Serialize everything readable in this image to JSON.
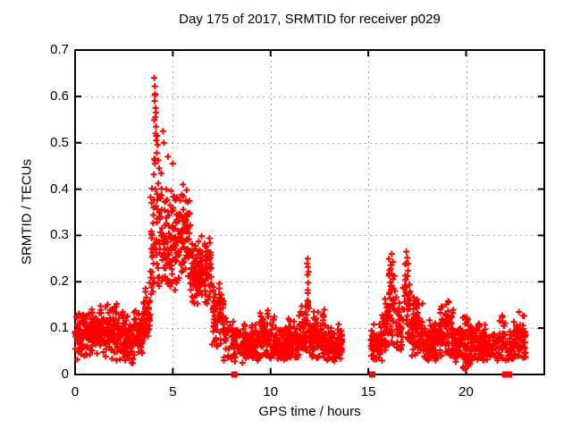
{
  "window": {
    "background": "#ffffff",
    "text_color": "#000000"
  },
  "chart_data": {
    "type": "scatter",
    "title": "Day 175 of 2017, SRMTID for receiver p029",
    "xlabel": "GPS time / hours",
    "ylabel": "SRMTID / TECUs",
    "xlim": [
      0,
      24
    ],
    "ylim": [
      0,
      0.7
    ],
    "xticks": {
      "values": [
        0,
        5,
        10,
        15,
        20
      ],
      "labels": [
        "0",
        "5",
        "10",
        "15",
        "20"
      ]
    },
    "yticks": {
      "values": [
        0,
        0.1,
        0.2,
        0.3,
        0.4,
        0.5,
        0.6,
        0.7
      ],
      "labels": [
        "0",
        "0.1",
        "0.2",
        "0.3",
        "0.4",
        "0.5",
        "0.6",
        "0.7"
      ]
    },
    "grid": {
      "show": true,
      "style": "dotted",
      "color": "#a8a8a8"
    },
    "legend": null,
    "axis_color": "#000000",
    "marker": {
      "shape": "plus",
      "size": 7,
      "stroke_width": 2,
      "color": "#ff0000"
    },
    "seed": 20170175,
    "series": [
      {
        "name": "SRMTID",
        "color": "#ff0000",
        "marker": "plus",
        "cluster_segments": [
          [
            0.0,
            0.5,
            58,
            0.085,
            0.025,
            0.03,
            0.14
          ],
          [
            0.5,
            1.0,
            58,
            0.09,
            0.026,
            0.04,
            0.15
          ],
          [
            1.0,
            1.5,
            58,
            0.095,
            0.028,
            0.04,
            0.175
          ],
          [
            1.5,
            2.0,
            58,
            0.09,
            0.03,
            0.025,
            0.17
          ],
          [
            2.0,
            2.5,
            58,
            0.095,
            0.03,
            0.03,
            0.175
          ],
          [
            2.5,
            3.0,
            58,
            0.07,
            0.026,
            0.02,
            0.13
          ],
          [
            3.0,
            3.5,
            58,
            0.09,
            0.025,
            0.04,
            0.15
          ],
          [
            3.5,
            3.85,
            40,
            0.13,
            0.032,
            0.07,
            0.21
          ],
          [
            3.85,
            4.0,
            20,
            0.27,
            0.09,
            0.15,
            0.5
          ],
          [
            4.0,
            4.18,
            22,
            0.38,
            0.12,
            0.17,
            0.63
          ],
          [
            4.18,
            4.45,
            30,
            0.3,
            0.075,
            0.19,
            0.5
          ],
          [
            4.45,
            4.75,
            36,
            0.28,
            0.06,
            0.18,
            0.5
          ],
          [
            4.75,
            5.3,
            64,
            0.285,
            0.055,
            0.18,
            0.46
          ],
          [
            5.3,
            5.9,
            70,
            0.3,
            0.05,
            0.2,
            0.42
          ],
          [
            5.9,
            6.35,
            54,
            0.21,
            0.04,
            0.12,
            0.3
          ],
          [
            6.35,
            7.0,
            76,
            0.23,
            0.035,
            0.14,
            0.3
          ],
          [
            7.0,
            7.6,
            70,
            0.13,
            0.032,
            0.06,
            0.2
          ],
          [
            7.6,
            8.1,
            38,
            0.08,
            0.025,
            0.03,
            0.13
          ],
          [
            8.1,
            8.65,
            40,
            0.06,
            0.02,
            0.025,
            0.1
          ],
          [
            8.65,
            9.4,
            86,
            0.065,
            0.02,
            0.03,
            0.11
          ],
          [
            9.4,
            10.2,
            92,
            0.08,
            0.025,
            0.035,
            0.14
          ],
          [
            10.2,
            10.85,
            76,
            0.065,
            0.02,
            0.03,
            0.12
          ],
          [
            10.85,
            11.45,
            70,
            0.075,
            0.025,
            0.035,
            0.13
          ],
          [
            11.45,
            11.85,
            46,
            0.09,
            0.028,
            0.05,
            0.155
          ],
          [
            11.85,
            11.98,
            13,
            0.16,
            0.05,
            0.09,
            0.24
          ],
          [
            11.98,
            12.8,
            96,
            0.08,
            0.025,
            0.035,
            0.14
          ],
          [
            12.8,
            13.67,
            98,
            0.06,
            0.02,
            0.025,
            0.11
          ],
          [
            15.13,
            15.7,
            64,
            0.065,
            0.022,
            0.03,
            0.12
          ],
          [
            15.7,
            16.05,
            40,
            0.1,
            0.03,
            0.05,
            0.18
          ],
          [
            16.05,
            16.45,
            46,
            0.14,
            0.05,
            0.06,
            0.25
          ],
          [
            16.45,
            16.78,
            38,
            0.1,
            0.03,
            0.05,
            0.18
          ],
          [
            16.78,
            17.15,
            42,
            0.15,
            0.05,
            0.07,
            0.26
          ],
          [
            17.15,
            17.8,
            76,
            0.1,
            0.032,
            0.04,
            0.2
          ],
          [
            17.8,
            18.6,
            92,
            0.07,
            0.022,
            0.03,
            0.12
          ],
          [
            18.6,
            19.35,
            86,
            0.09,
            0.03,
            0.04,
            0.16
          ],
          [
            19.35,
            19.8,
            52,
            0.06,
            0.02,
            0.025,
            0.1
          ],
          [
            19.8,
            20.25,
            52,
            0.07,
            0.03,
            0.012,
            0.13
          ],
          [
            20.25,
            21.0,
            86,
            0.065,
            0.022,
            0.03,
            0.11
          ],
          [
            21.0,
            21.6,
            38,
            0.06,
            0.02,
            0.03,
            0.1
          ],
          [
            21.6,
            22.0,
            34,
            0.07,
            0.025,
            0.03,
            0.125
          ],
          [
            22.0,
            22.4,
            28,
            0.06,
            0.02,
            0.03,
            0.1
          ],
          [
            22.4,
            23.05,
            70,
            0.075,
            0.025,
            0.035,
            0.14
          ]
        ],
        "outlier_points": [
          [
            4.05,
            0.64
          ],
          [
            4.08,
            0.622
          ],
          [
            4.1,
            0.605
          ],
          [
            4.07,
            0.59
          ],
          [
            4.12,
            0.575
          ],
          [
            4.1,
            0.555
          ],
          [
            4.14,
            0.535
          ],
          [
            4.12,
            0.52
          ],
          [
            4.2,
            0.515
          ],
          [
            4.16,
            0.505
          ],
          [
            4.22,
            0.495
          ],
          [
            4.18,
            0.478
          ],
          [
            4.26,
            0.462
          ],
          [
            4.3,
            0.445
          ],
          [
            4.5,
            0.525
          ],
          [
            4.54,
            0.5
          ],
          [
            4.75,
            0.47
          ],
          [
            5.0,
            0.455
          ],
          [
            11.9,
            0.25
          ],
          [
            11.91,
            0.232
          ],
          [
            11.89,
            0.215
          ],
          [
            11.92,
            0.198
          ],
          [
            11.9,
            0.182
          ],
          [
            16.2,
            0.26
          ],
          [
            16.26,
            0.243
          ],
          [
            16.14,
            0.228
          ],
          [
            16.94,
            0.265
          ],
          [
            16.99,
            0.252
          ],
          [
            16.88,
            0.238
          ],
          [
            17.03,
            0.224
          ],
          [
            19.12,
            0.156
          ],
          [
            19.95,
            0.012
          ],
          [
            21.85,
            0.127
          ],
          [
            22.7,
            0.135
          ]
        ],
        "zero_square_markers_x": [
          8.15,
          15.2,
          22.0,
          22.1,
          22.2
        ],
        "data_gap_hours": [
          13.67,
          15.13
        ]
      }
    ]
  }
}
